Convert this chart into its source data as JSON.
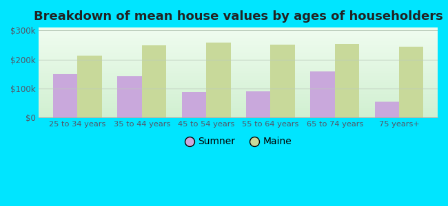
{
  "title": "Breakdown of mean house values by ages of householders",
  "categories": [
    "25 to 34 years",
    "35 to 44 years",
    "45 to 54 years",
    "55 to 64 years",
    "65 to 74 years",
    "75 years+"
  ],
  "sumner_values": [
    150000,
    143000,
    87000,
    90000,
    158000,
    55000
  ],
  "maine_values": [
    213000,
    248000,
    258000,
    252000,
    253000,
    243000
  ],
  "sumner_color": "#c9a8dc",
  "maine_color": "#c8d99a",
  "background_color": "#00e5ff",
  "plot_bg_top": "#f5fdf5",
  "plot_bg_bottom": "#dff2e0",
  "ylim": [
    0,
    310000
  ],
  "yticks": [
    0,
    100000,
    200000,
    300000
  ],
  "legend_labels": [
    "Sumner",
    "Maine"
  ],
  "title_fontsize": 13,
  "bar_width": 0.38,
  "figsize": [
    6.5,
    3.0
  ],
  "dpi": 100
}
